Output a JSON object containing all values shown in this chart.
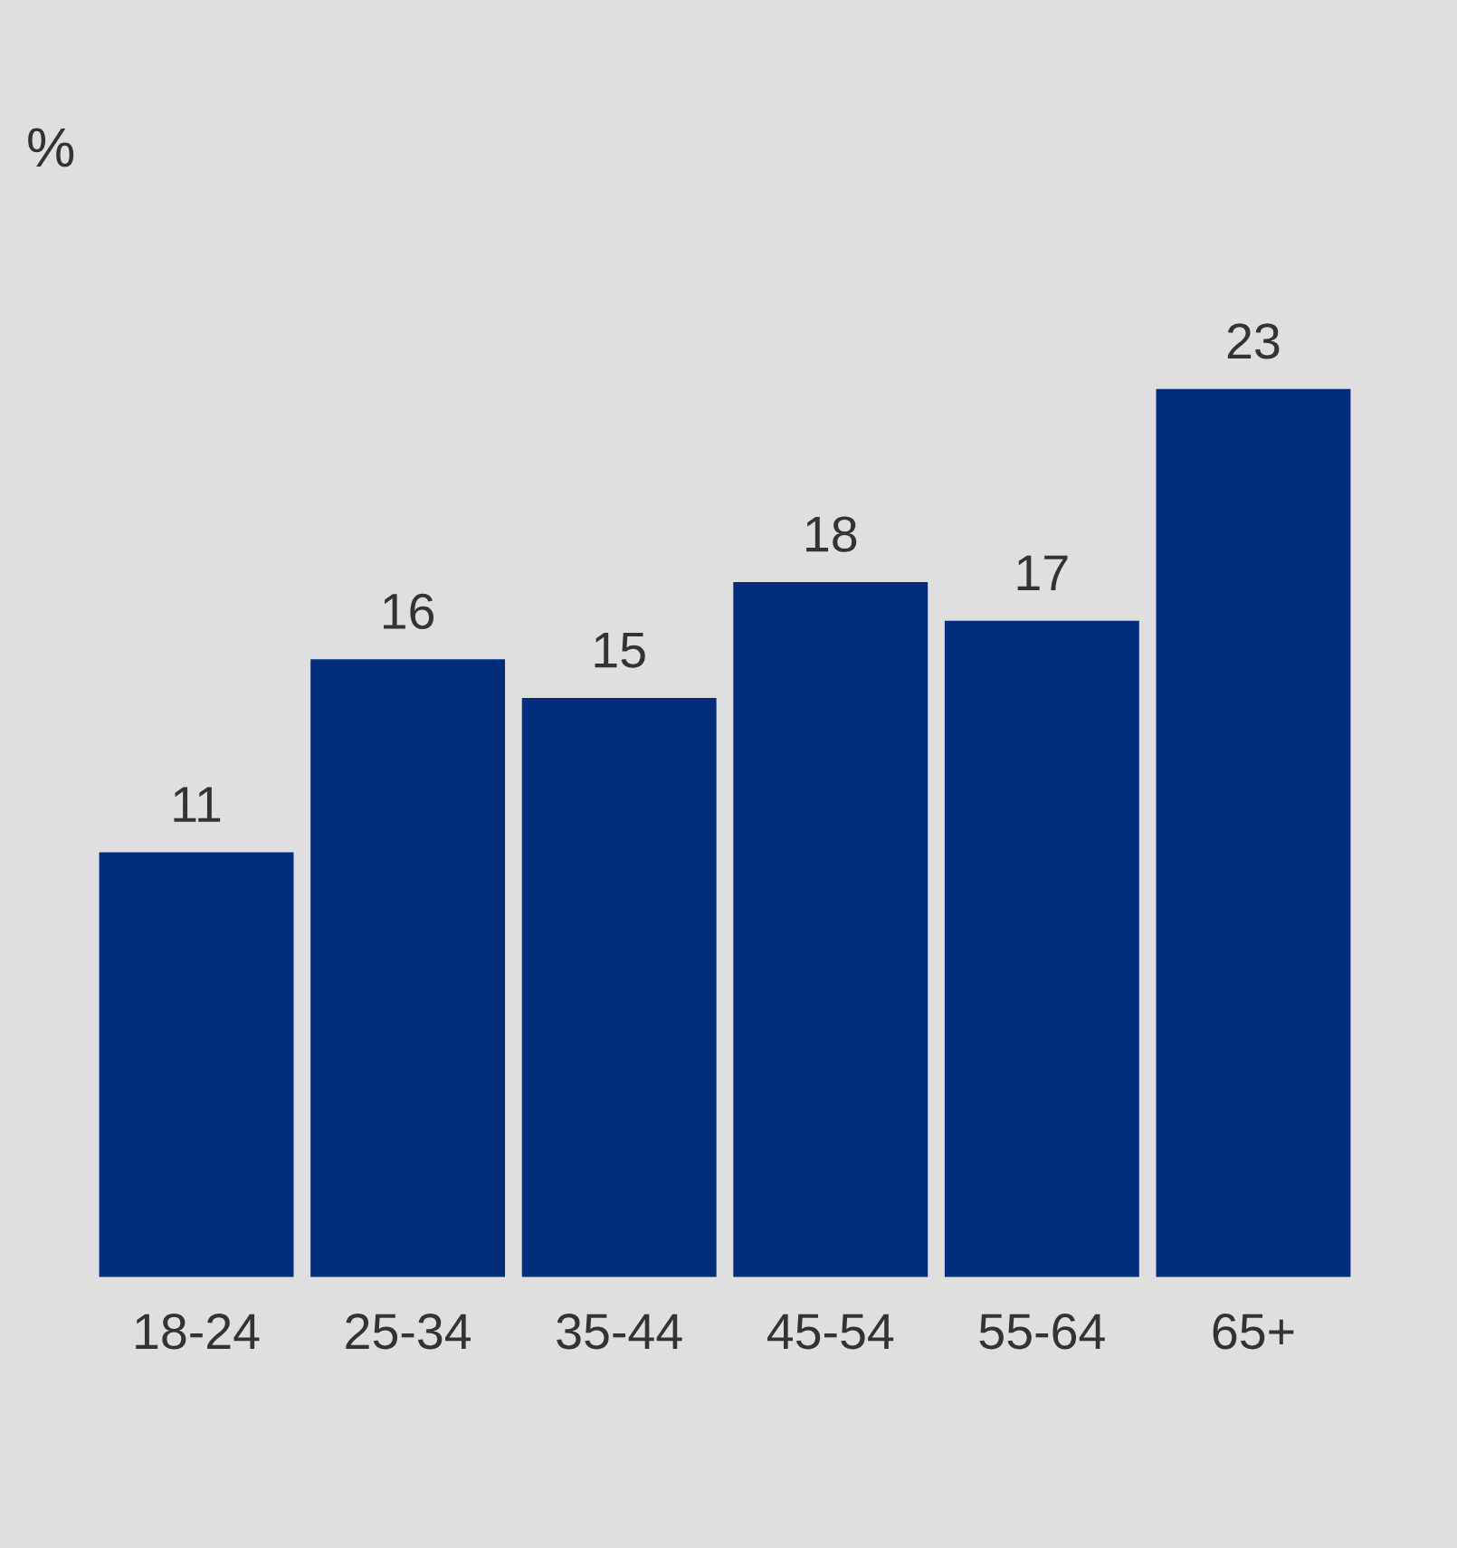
{
  "chart_data": {
    "type": "bar",
    "ylabel": "%",
    "categories": [
      "18-24",
      "25-34",
      "35-44",
      "45-54",
      "55-64",
      "65+"
    ],
    "values": [
      11,
      16,
      15,
      18,
      17,
      23
    ],
    "color": "#002d7c",
    "data_labels": true,
    "grid": false,
    "legend": false,
    "tick_labels": "x"
  }
}
